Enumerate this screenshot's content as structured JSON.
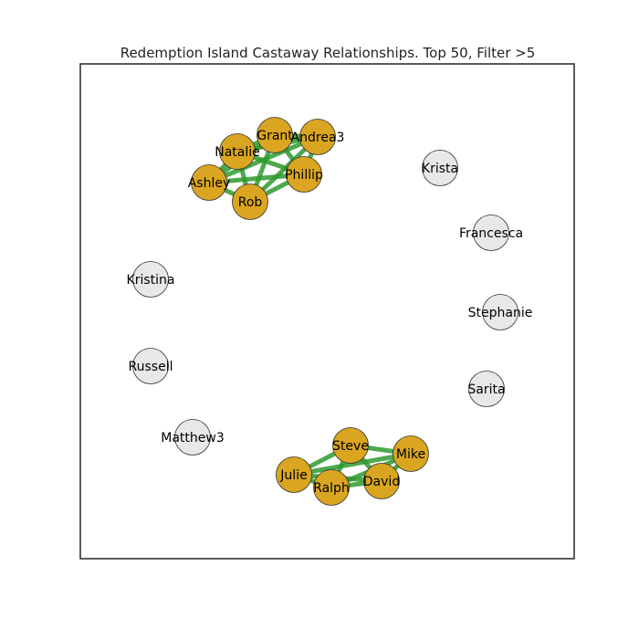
{
  "title": "Redemption Island Castaway Relationships. Top 50, Filter >5",
  "colors": {
    "group_node": "#DAA520",
    "isolated_node": "#E8E8E8",
    "node_stroke": "#333333",
    "edge": "#2E9A2E",
    "frame": "#333333",
    "background": "#ffffff"
  },
  "nodes": [
    {
      "id": "Grant",
      "label": "Grant",
      "group": true
    },
    {
      "id": "Andrea3",
      "label": "Andrea3",
      "group": true
    },
    {
      "id": "Natalie",
      "label": "Natalie",
      "group": true
    },
    {
      "id": "Phillip",
      "label": "Phillip",
      "group": true
    },
    {
      "id": "Ashley",
      "label": "Ashley",
      "group": true
    },
    {
      "id": "Rob",
      "label": "Rob",
      "group": true
    },
    {
      "id": "Krista",
      "label": "Krista",
      "group": false
    },
    {
      "id": "Francesca",
      "label": "Francesca",
      "group": false
    },
    {
      "id": "Kristina",
      "label": "Kristina",
      "group": false
    },
    {
      "id": "Stephanie",
      "label": "Stephanie",
      "group": false
    },
    {
      "id": "Russell",
      "label": "Russell",
      "group": false
    },
    {
      "id": "Sarita",
      "label": "Sarita",
      "group": false
    },
    {
      "id": "Matthew3",
      "label": "Matthew3",
      "group": false
    },
    {
      "id": "Steve",
      "label": "Steve",
      "group": true
    },
    {
      "id": "Mike",
      "label": "Mike",
      "group": true
    },
    {
      "id": "Julie",
      "label": "Julie",
      "group": true
    },
    {
      "id": "Ralph",
      "label": "Ralph",
      "group": true
    },
    {
      "id": "David",
      "label": "David",
      "group": true
    }
  ],
  "edges": [
    [
      "Grant",
      "Andrea3"
    ],
    [
      "Grant",
      "Natalie"
    ],
    [
      "Grant",
      "Phillip"
    ],
    [
      "Grant",
      "Ashley"
    ],
    [
      "Grant",
      "Rob"
    ],
    [
      "Andrea3",
      "Natalie"
    ],
    [
      "Andrea3",
      "Phillip"
    ],
    [
      "Andrea3",
      "Ashley"
    ],
    [
      "Andrea3",
      "Rob"
    ],
    [
      "Natalie",
      "Phillip"
    ],
    [
      "Natalie",
      "Ashley"
    ],
    [
      "Natalie",
      "Rob"
    ],
    [
      "Phillip",
      "Ashley"
    ],
    [
      "Phillip",
      "Rob"
    ],
    [
      "Ashley",
      "Rob"
    ],
    [
      "Steve",
      "Mike"
    ],
    [
      "Steve",
      "Julie"
    ],
    [
      "Steve",
      "Ralph"
    ],
    [
      "Steve",
      "David"
    ],
    [
      "Mike",
      "Julie"
    ],
    [
      "Mike",
      "Ralph"
    ],
    [
      "Mike",
      "David"
    ],
    [
      "Julie",
      "Ralph"
    ],
    [
      "Julie",
      "David"
    ],
    [
      "Ralph",
      "David"
    ]
  ]
}
